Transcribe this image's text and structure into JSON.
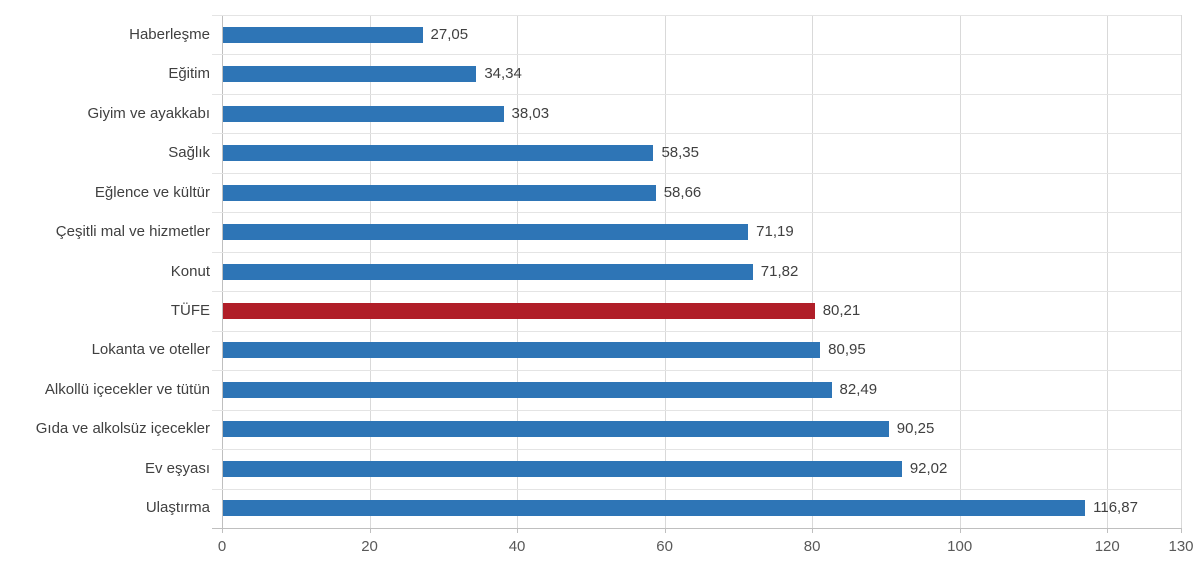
{
  "chart_data": {
    "type": "bar",
    "orientation": "horizontal",
    "title": "",
    "xlabel": "",
    "ylabel": "",
    "xlim": [
      0,
      130
    ],
    "xticks": [
      0,
      20,
      40,
      60,
      80,
      100,
      120,
      130
    ],
    "xtick_labels": [
      "0",
      "20",
      "40",
      "60",
      "80",
      "100",
      "120",
      "130"
    ],
    "grid": true,
    "legend": "none",
    "decimal_separator": ",",
    "bar_color": "#2e75b6",
    "highlight_color": "#b01e28",
    "highlight_category": "TÜFE",
    "categories": [
      "Haberleşme",
      "Eğitim",
      "Giyim ve ayakkabı",
      "Sağlık",
      "Eğlence ve kültür",
      "Çeşitli mal ve hizmetler",
      "Konut",
      "TÜFE",
      "Lokanta ve oteller",
      "Alkollü içecekler ve tütün",
      "Gıda ve alkolsüz içecekler",
      "Ev eşyası",
      "Ulaştırma"
    ],
    "values": [
      27.05,
      34.34,
      38.03,
      58.35,
      58.66,
      71.19,
      71.82,
      80.21,
      80.95,
      82.49,
      90.25,
      92.02,
      116.87
    ],
    "value_labels": [
      "27,05",
      "34,34",
      "38,03",
      "58,35",
      "58,66",
      "71,19",
      "71,82",
      "80,21",
      "80,95",
      "82,49",
      "90,25",
      "92,02",
      "116,87"
    ]
  }
}
